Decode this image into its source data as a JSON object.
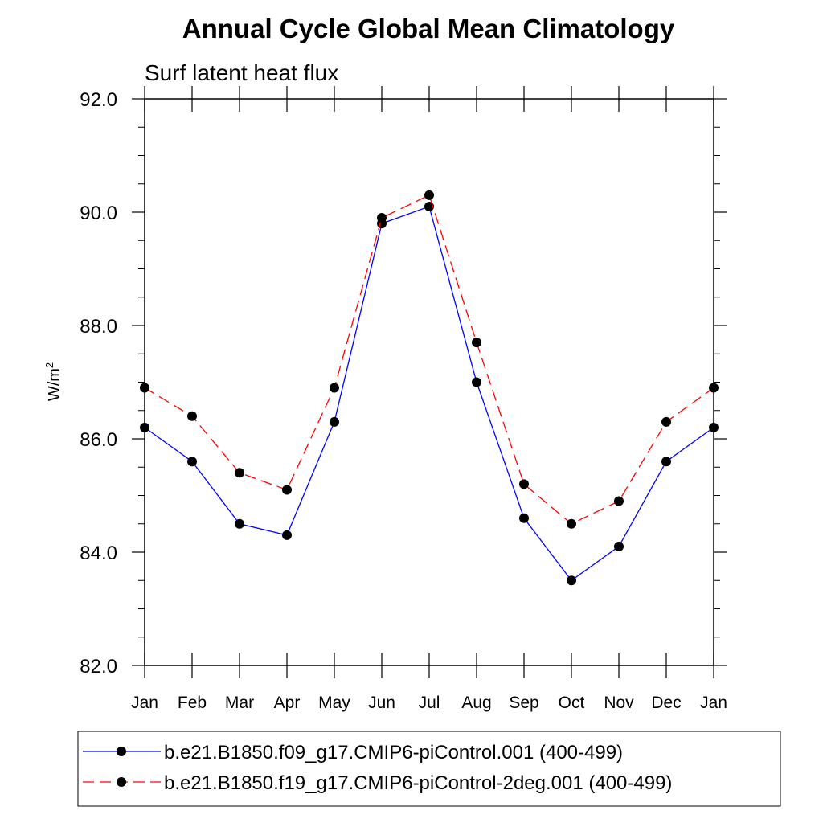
{
  "chart_data": {
    "type": "line",
    "title": "Annual Cycle Global Mean Climatology",
    "subtitle": "Surf latent heat flux",
    "ylabel": "W/m",
    "ylabel_superscript": "2",
    "xlabel": "",
    "categories": [
      "Jan",
      "Feb",
      "Mar",
      "Apr",
      "May",
      "Jun",
      "Jul",
      "Aug",
      "Sep",
      "Oct",
      "Nov",
      "Dec",
      "Jan"
    ],
    "ylim": [
      82.0,
      92.0
    ],
    "yticks": [
      82.0,
      84.0,
      86.0,
      88.0,
      90.0,
      92.0
    ],
    "ytick_labels": [
      "82.0",
      "84.0",
      "86.0",
      "88.0",
      "90.0",
      "92.0"
    ],
    "series": [
      {
        "name": "b.e21.B1850.f09_g17.CMIP6-piControl.001 (400-499)",
        "color": "#0000ff",
        "dash": "solid",
        "values": [
          86.2,
          85.6,
          84.5,
          84.3,
          86.3,
          89.8,
          90.1,
          87.0,
          84.6,
          83.5,
          84.1,
          85.6,
          86.2
        ]
      },
      {
        "name": "b.e21.B1850.f19_g17.CMIP6-piControl-2deg.001 (400-499)",
        "color": "#ff0000",
        "dash": "dashed",
        "values": [
          86.9,
          86.4,
          85.4,
          85.1,
          86.9,
          89.9,
          90.3,
          87.7,
          85.2,
          84.5,
          84.9,
          86.3,
          86.9
        ]
      }
    ],
    "legend_position": "bottom"
  }
}
